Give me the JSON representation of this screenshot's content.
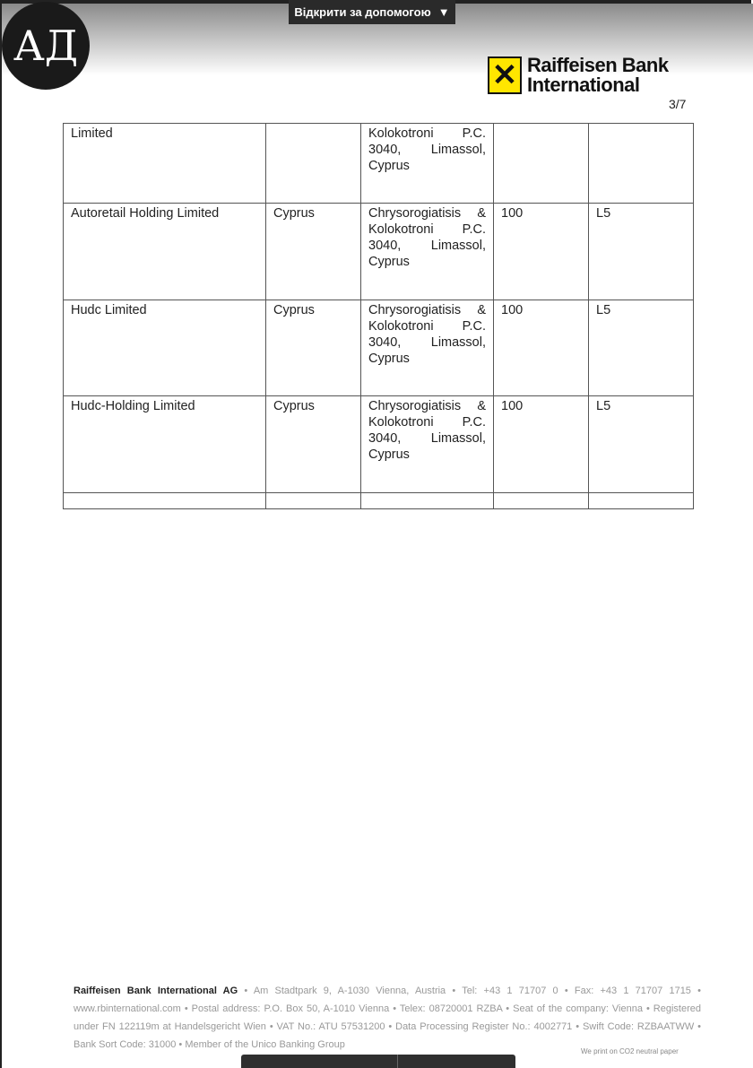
{
  "viewer": {
    "open_with_label": "Відкрити за допомогою",
    "dropdown_icon": "caret-down-icon"
  },
  "watermark_logo": "АД",
  "header": {
    "bank_name_line1": "Raiffeisen Bank",
    "bank_name_line2": "International",
    "page_number": "3/7"
  },
  "table": {
    "rows": [
      [
        "Limited",
        "",
        "Kolokotroni P.C. 3040, Limassol, Cyprus",
        "",
        ""
      ],
      [
        "Autoretail Holding Limited",
        "Cyprus",
        "Chrysorogiatisis & Kolokotroni P.C. 3040, Limassol, Cyprus",
        "100",
        "L5"
      ],
      [
        "Hudc Limited",
        "Cyprus",
        "Chrysorogiatisis & Kolokotroni P.C. 3040, Limassol, Cyprus",
        "100",
        "L5"
      ],
      [
        "Hudc-Holding Limited",
        "Cyprus",
        "Chrysorogiatisis & Kolokotroni P.C. 3040, Limassol, Cyprus",
        "100",
        "L5"
      ],
      [
        "",
        "",
        "",
        "",
        ""
      ]
    ]
  },
  "footer": {
    "company": "Raiffeisen Bank International AG",
    "text": " • Am Stadtpark 9, A-1030 Vienna, Austria • Tel: +43 1 71707 0 • Fax: +43 1 71707 1715 • www.rbinternational.com • Postal address: P.O. Box 50, A-1010 Vienna • Telex: 08720001 RZBA • Seat of the company: Vienna • Registered under FN 122119m at Handelsgericht Wien • VAT No.: ATU 57531200 • Data Processing Register No.: 4002771 • Swift Code: RZBAATWW • Bank Sort Code: 31000 • Member of the Unico Banking Group",
    "co2_note": "We print on CO2 neutral paper"
  }
}
